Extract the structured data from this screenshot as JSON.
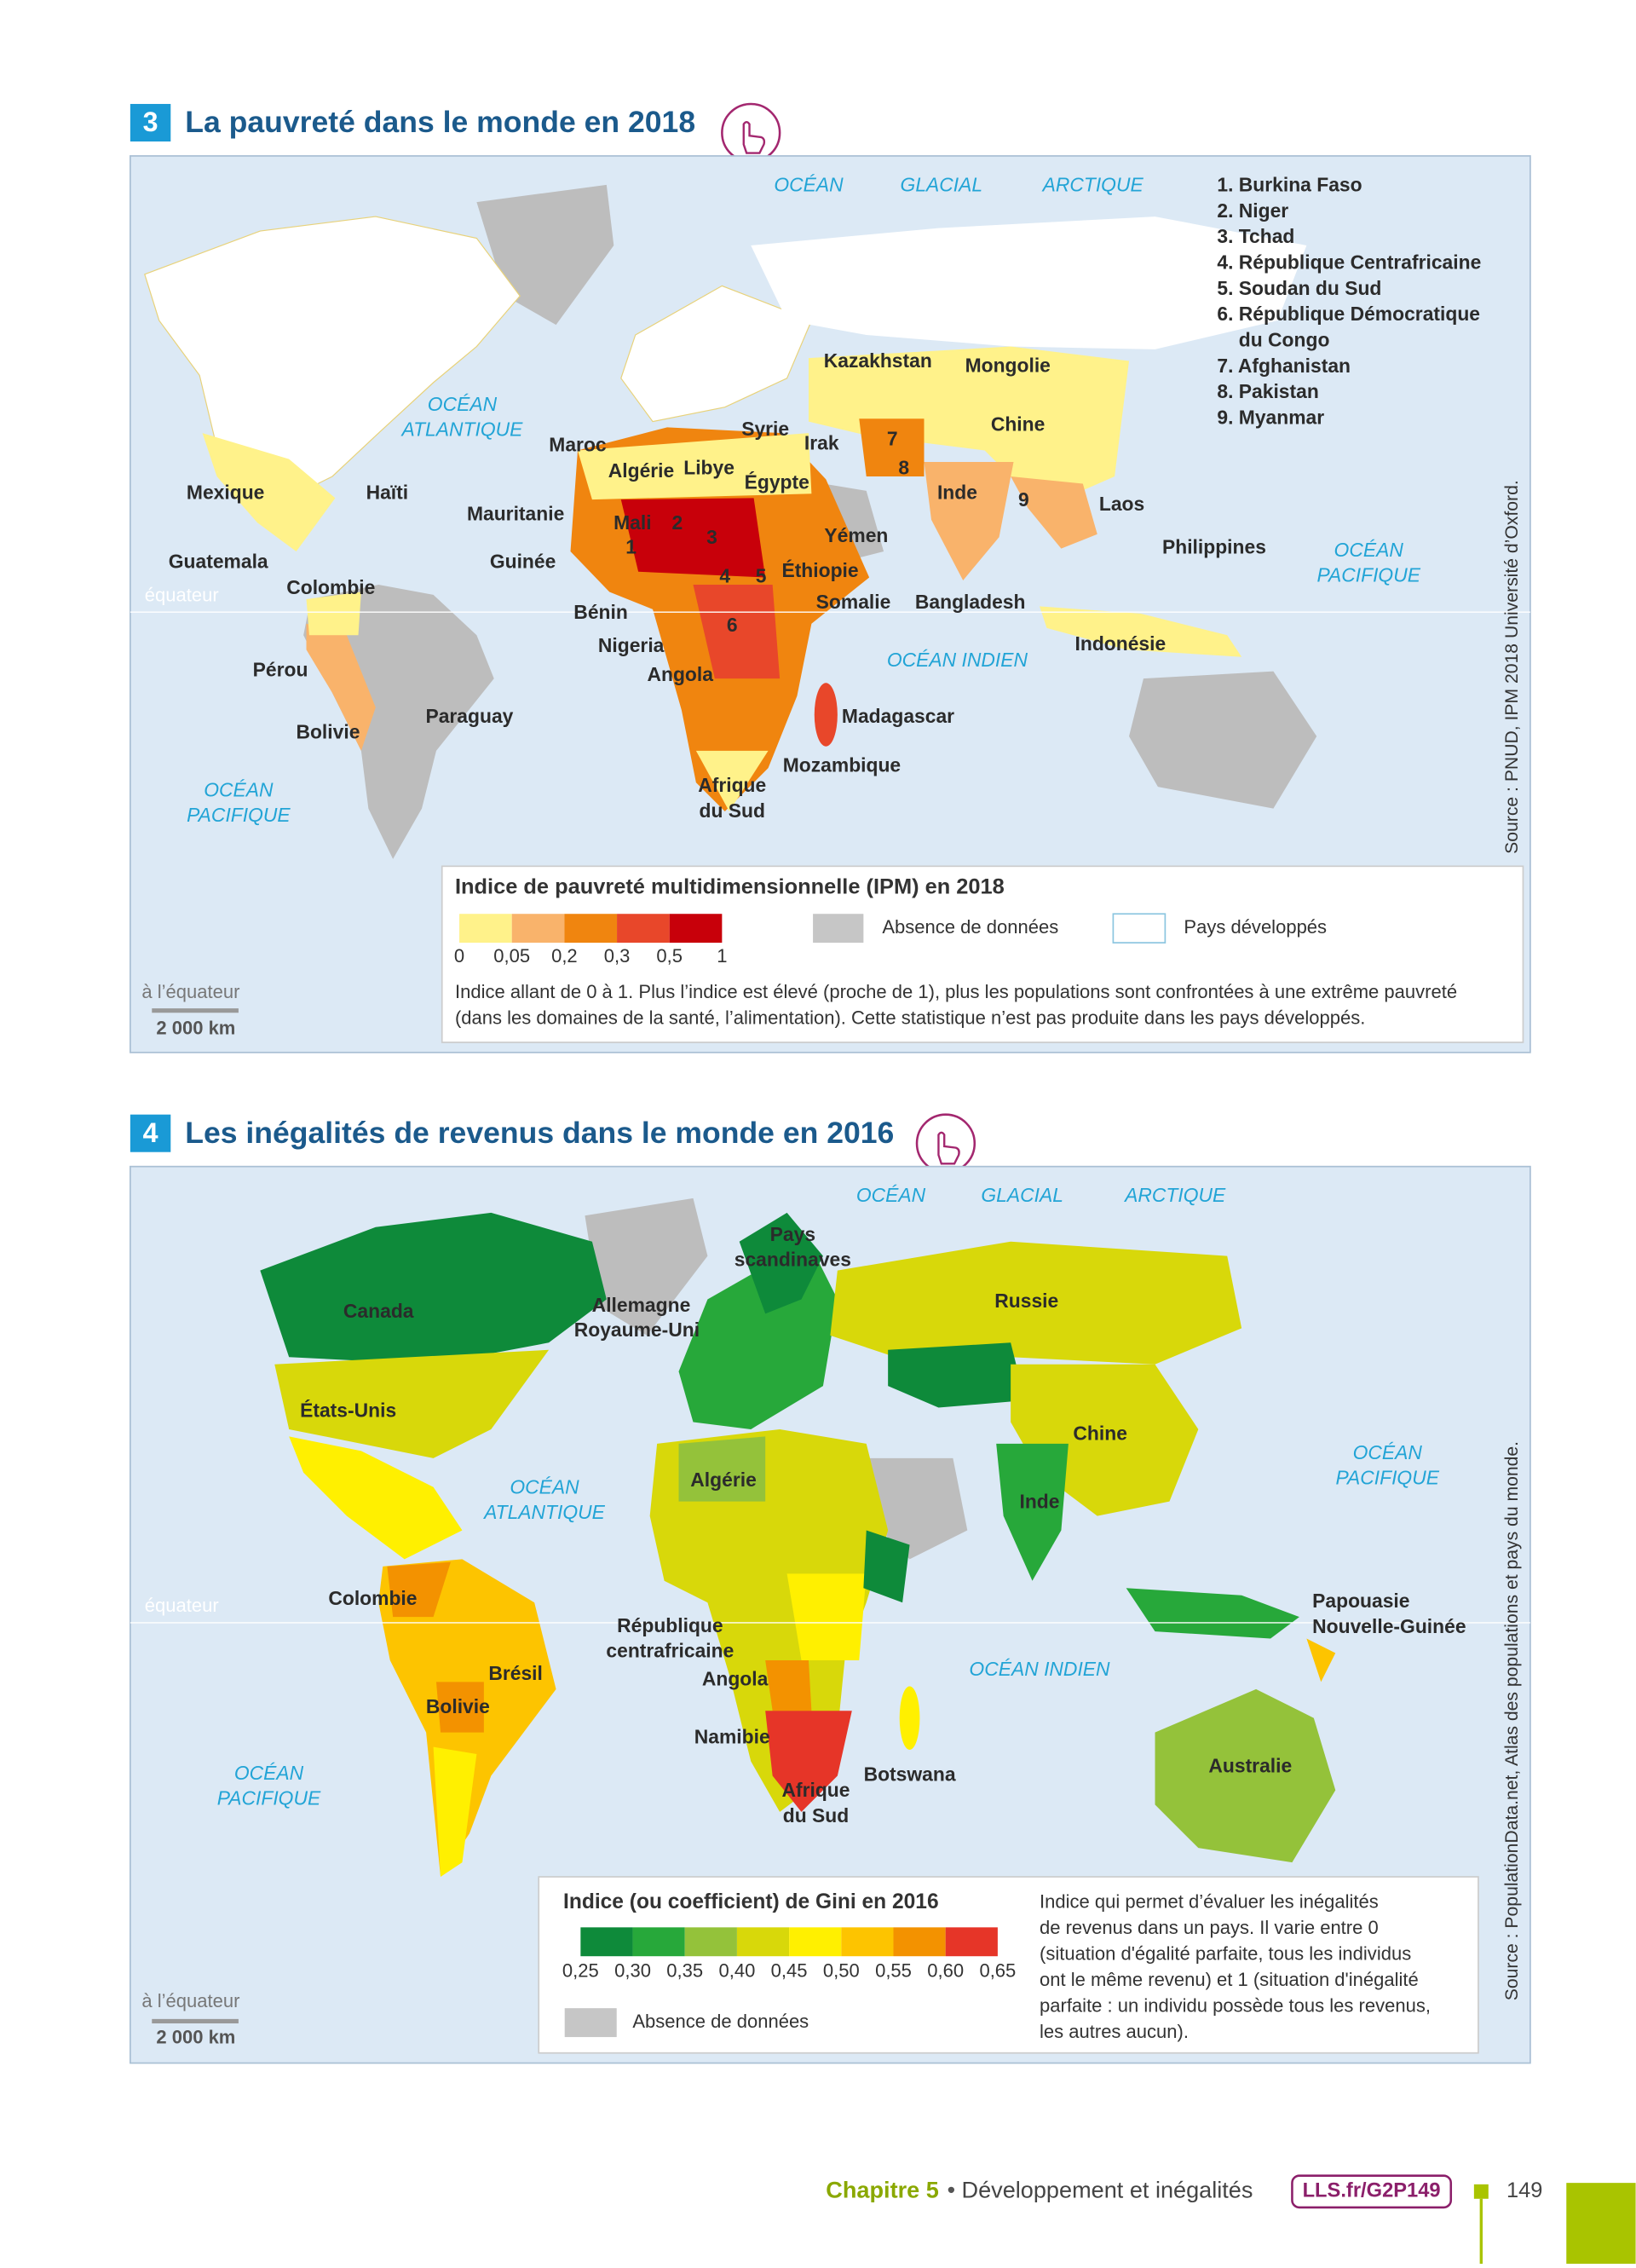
{
  "map1": {
    "number": "3",
    "title": "La pauvreté dans le monde en 2018",
    "ocean_labels": [
      [
        "OCÉAN"
      ],
      [
        "GLACIAL"
      ],
      [
        "ARCTIQUE"
      ],
      [
        "OCÉAN",
        "ATLANTIQUE"
      ],
      [
        "OCÉAN",
        "PACIFIQUE"
      ],
      [
        "OCÉAN INDIEN"
      ],
      [
        "OCÉAN",
        "PACIFIQUE"
      ]
    ],
    "country_labels": [
      [
        "Kazakhstan"
      ],
      [
        "Mongolie"
      ],
      [
        "Chine"
      ],
      [
        "Syrie"
      ],
      [
        "Irak"
      ],
      [
        "Maroc"
      ],
      [
        "Algérie"
      ],
      [
        "Libye"
      ],
      [
        "Égypte"
      ],
      [
        "Mexique"
      ],
      [
        "Haïti"
      ],
      [
        "Mauritanie"
      ],
      [
        "Mali"
      ],
      [
        "Inde"
      ],
      [
        "Laos"
      ],
      [
        "Yémen"
      ],
      [
        "Philippines"
      ],
      [
        "Guatemala"
      ],
      [
        "Guinée"
      ],
      [
        "Éthiopie"
      ],
      [
        "Colombie"
      ],
      [
        "Bénin"
      ],
      [
        "Somalie"
      ],
      [
        "Bangladesh"
      ],
      [
        "Indonésie"
      ],
      [
        "Nigeria"
      ],
      [
        "Pérou"
      ],
      [
        "Angola"
      ],
      [
        "Madagascar"
      ],
      [
        "Paraguay"
      ],
      [
        "Bolivie"
      ],
      [
        "Mozambique"
      ],
      [
        "Afrique",
        "du Sud"
      ]
    ],
    "map_numbers": [
      "1",
      "2",
      "3",
      "4",
      "5",
      "6",
      "7",
      "8",
      "9"
    ],
    "numbered_list": [
      "1. Burkina Faso",
      "2. Niger",
      "3. Tchad",
      "4. République Centrafricaine",
      "5. Soudan du Sud",
      "6. République Démocratique",
      "du Congo",
      "7. Afghanistan",
      "8. Pakistan",
      "9. Myanmar"
    ],
    "equator": "équateur",
    "legend": {
      "title": "Indice de pauvreté multidimensionnelle (IPM) en 2018",
      "colors": [
        "#fff28a",
        "#f9b36b",
        "#f0850f",
        "#e8472a",
        "#c8000a"
      ],
      "scale_labels": [
        "0",
        "0,05",
        "0,2",
        "0,3",
        "0,5",
        "1"
      ],
      "no_data": "Absence de données",
      "developed": "Pays développés",
      "note": [
        "Indice allant de 0 à 1. Plus l’indice est élevé (proche de 1), plus les populations sont confrontées à une extrême pauvreté",
        "(dans les domaines de la santé, l’alimentation). Cette statistique n’est pas produite dans les pays développés."
      ]
    },
    "scale": {
      "caption": "à l’équateur",
      "distance": "2 000 km"
    },
    "source": "Source : PNUD, IPM 2018 Université d’Oxford."
  },
  "map2": {
    "number": "4",
    "title": "Les inégalités de revenus dans le monde en 2016",
    "ocean_labels": [
      [
        "OCÉAN"
      ],
      [
        "GLACIAL"
      ],
      [
        "ARCTIQUE"
      ],
      [
        "OCÉAN",
        "ATLANTIQUE"
      ],
      [
        "OCÉAN",
        "PACIFIQUE"
      ],
      [
        "OCÉAN INDIEN"
      ],
      [
        "OCÉAN",
        "PACIFIQUE"
      ]
    ],
    "country_labels": [
      [
        "Pays",
        "scandinaves"
      ],
      [
        "Allemagne"
      ],
      [
        "Royaume-Uni"
      ],
      [
        "Canada"
      ],
      [
        "Russie"
      ],
      [
        "États-Unis"
      ],
      [
        "Chine"
      ],
      [
        "Algérie"
      ],
      [
        "Inde"
      ],
      [
        "Colombie"
      ],
      [
        "Papouasie",
        "Nouvelle-Guinée"
      ],
      [
        "République",
        "centrafricaine"
      ],
      [
        "Brésil"
      ],
      [
        "Angola"
      ],
      [
        "Bolivie"
      ],
      [
        "Namibie"
      ],
      [
        "Botswana"
      ],
      [
        "Australie"
      ],
      [
        "Afrique",
        "du Sud"
      ]
    ],
    "equator": "équateur",
    "legend": {
      "title": "Indice (ou coefficient) de Gini en 2016",
      "colors": [
        "#0e8a3a",
        "#27a83a",
        "#94c23a",
        "#d8d80a",
        "#fff000",
        "#fdc400",
        "#f39200",
        "#e63528"
      ],
      "scale_labels": [
        "0,25",
        "0,30",
        "0,35",
        "0,40",
        "0,45",
        "0,50",
        "0,55",
        "0,60",
        "0,65"
      ],
      "no_data": "Absence de données",
      "note": [
        "Indice qui permet d’évaluer les inégalités",
        "de revenus dans un pays. Il varie entre 0",
        "(situation d'égalité parfaite, tous les individus",
        "ont le même revenu) et 1 (situation d'inégalité",
        "parfaite : un individu possède tous les revenus,",
        "les autres aucun)."
      ]
    },
    "scale": {
      "caption": "à l’équateur",
      "distance": "2 000 km"
    },
    "source": "Source : PopulationData.net, Atlas des populations et pays du monde."
  },
  "footer": {
    "chapter": "Chapitre 5",
    "separator": "•",
    "topic": "Développement et inégalités",
    "link": "LLS.fr/G2P149",
    "page": "149"
  }
}
